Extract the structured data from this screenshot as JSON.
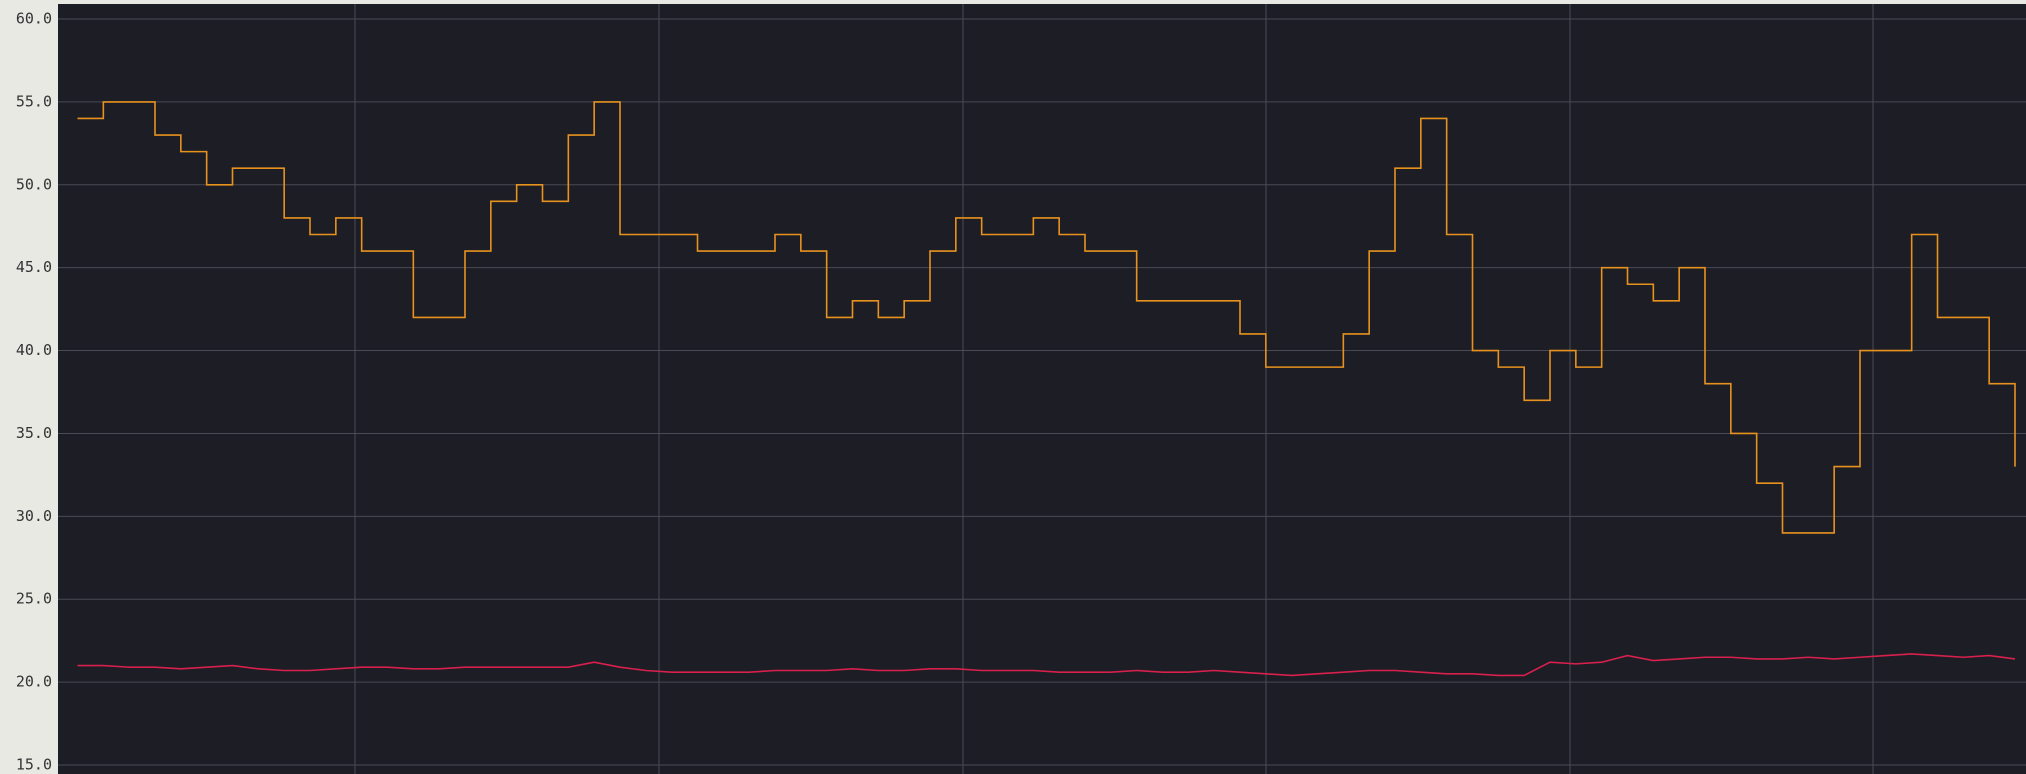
{
  "chart_data": {
    "type": "line",
    "ylim": [
      15,
      60
    ],
    "yticks": [
      {
        "value": 15,
        "label": "15.0"
      },
      {
        "value": 20,
        "label": "20.0"
      },
      {
        "value": 25,
        "label": "25.0"
      },
      {
        "value": 30,
        "label": "30.0"
      },
      {
        "value": 35,
        "label": "35.0"
      },
      {
        "value": 40,
        "label": "40.0"
      },
      {
        "value": 45,
        "label": "45.0"
      },
      {
        "value": 50,
        "label": "50.0"
      },
      {
        "value": 55,
        "label": "55.0"
      },
      {
        "value": 60,
        "label": "60.0"
      }
    ],
    "grid": true,
    "series": [
      {
        "color": "#e8921e",
        "step": true,
        "values": [
          54,
          55,
          55,
          53,
          52,
          50,
          51,
          51,
          48,
          47,
          48,
          46,
          46,
          42,
          42,
          46,
          49,
          50,
          49,
          53,
          55,
          47,
          47,
          47,
          46,
          46,
          46,
          47,
          46,
          42,
          43,
          42,
          43,
          46,
          48,
          47,
          47,
          48,
          47,
          46,
          46,
          43,
          43,
          43,
          43,
          41,
          39,
          39,
          39,
          41,
          46,
          51,
          54,
          47,
          40,
          39,
          37,
          40,
          39,
          45,
          44,
          43,
          45,
          38,
          35,
          32,
          29,
          29,
          33,
          40,
          40,
          47,
          42,
          42,
          38,
          33
        ]
      },
      {
        "color": "#d8204c",
        "step": false,
        "values": [
          21.0,
          21.0,
          20.9,
          20.9,
          20.8,
          20.9,
          21.0,
          20.8,
          20.7,
          20.7,
          20.8,
          20.9,
          20.9,
          20.8,
          20.8,
          20.9,
          20.9,
          20.9,
          20.9,
          20.9,
          21.2,
          20.9,
          20.7,
          20.6,
          20.6,
          20.6,
          20.6,
          20.7,
          20.7,
          20.7,
          20.8,
          20.7,
          20.7,
          20.8,
          20.8,
          20.7,
          20.7,
          20.7,
          20.6,
          20.6,
          20.6,
          20.7,
          20.6,
          20.6,
          20.7,
          20.6,
          20.5,
          20.4,
          20.5,
          20.6,
          20.7,
          20.7,
          20.6,
          20.5,
          20.5,
          20.4,
          20.4,
          21.2,
          21.1,
          21.2,
          21.6,
          21.3,
          21.4,
          21.5,
          21.5,
          21.4,
          21.4,
          21.5,
          21.4,
          21.5,
          21.6,
          21.7,
          21.6,
          21.5,
          21.6,
          21.4
        ]
      }
    ]
  }
}
